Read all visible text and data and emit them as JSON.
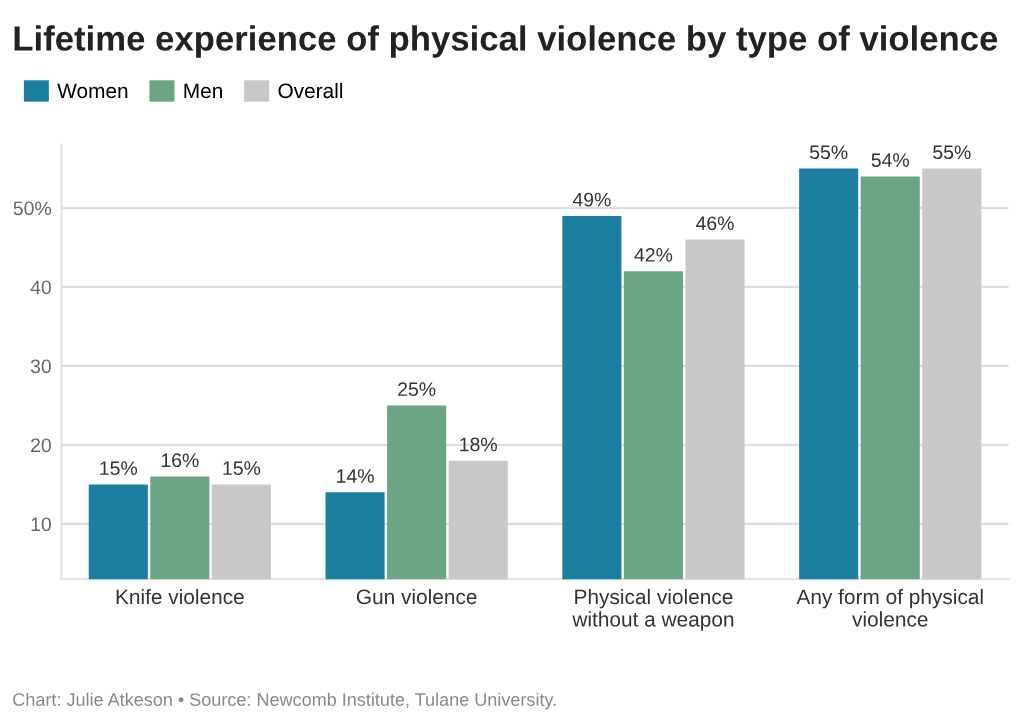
{
  "chart_data": {
    "type": "bar",
    "title": "Lifetime experience of physical violence by type of violence",
    "categories": [
      "Knife violence",
      "Gun violence",
      "Physical violence without a weapon",
      "Any form of physical violence"
    ],
    "series": [
      {
        "name": "Women",
        "color": "#1a7fa1",
        "values": [
          15,
          14,
          49,
          55
        ],
        "value_labels": [
          "15%",
          "14%",
          "49%",
          "55%"
        ]
      },
      {
        "name": "Men",
        "color": "#6ba583",
        "values": [
          16,
          25,
          42,
          54
        ],
        "value_labels": [
          "16%",
          "25%",
          "42%",
          "54%"
        ]
      },
      {
        "name": "Overall",
        "color": "#c8c8c8",
        "values": [
          15,
          18,
          46,
          55
        ],
        "value_labels": [
          "15%",
          "18%",
          "46%",
          "55%"
        ]
      }
    ],
    "ylim": [
      3,
      58
    ],
    "yticks": [
      10,
      20,
      30,
      40,
      {
        "value": 50,
        "label": "50%"
      }
    ],
    "grid": "y",
    "legend": "top left",
    "annotations": [
      "Chart: Julie Atkeson • Source: Newcomb Institute, Tulane University."
    ]
  }
}
